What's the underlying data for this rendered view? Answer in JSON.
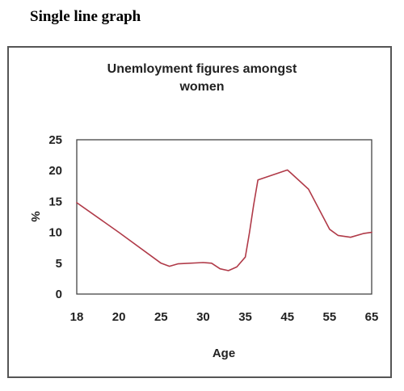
{
  "page": {
    "heading": "Single line graph"
  },
  "chart_data": {
    "type": "line",
    "title_lines": [
      "Unemloyment figures amongst",
      "women"
    ],
    "xlabel": "Age",
    "ylabel": "%",
    "x_ticks": [
      18,
      20,
      25,
      30,
      35,
      45,
      55,
      65
    ],
    "y_ticks": [
      0,
      5,
      10,
      15,
      20,
      25
    ],
    "ylim": [
      0,
      25
    ],
    "grid": false,
    "legend": "none",
    "line_color": "#b03a48",
    "series": [
      {
        "points": [
          {
            "x": 18,
            "y": 14.8
          },
          {
            "x": 20,
            "y": 10.0
          },
          {
            "x": 25,
            "y": 5.0
          },
          {
            "x": 26,
            "y": 4.5
          },
          {
            "x": 27,
            "y": 4.9
          },
          {
            "x": 30,
            "y": 5.1
          },
          {
            "x": 31,
            "y": 5.0
          },
          {
            "x": 32,
            "y": 4.1
          },
          {
            "x": 33,
            "y": 3.8
          },
          {
            "x": 34,
            "y": 4.4
          },
          {
            "x": 35,
            "y": 6.0
          },
          {
            "x": 36,
            "y": 10.0
          },
          {
            "x": 37,
            "y": 14.5
          },
          {
            "x": 38,
            "y": 18.5
          },
          {
            "x": 45,
            "y": 20.1
          },
          {
            "x": 46,
            "y": 19.5
          },
          {
            "x": 50,
            "y": 17.0
          },
          {
            "x": 55,
            "y": 10.5
          },
          {
            "x": 57,
            "y": 9.5
          },
          {
            "x": 60,
            "y": 9.2
          },
          {
            "x": 63,
            "y": 9.8
          },
          {
            "x": 65,
            "y": 10.0
          }
        ]
      }
    ]
  }
}
